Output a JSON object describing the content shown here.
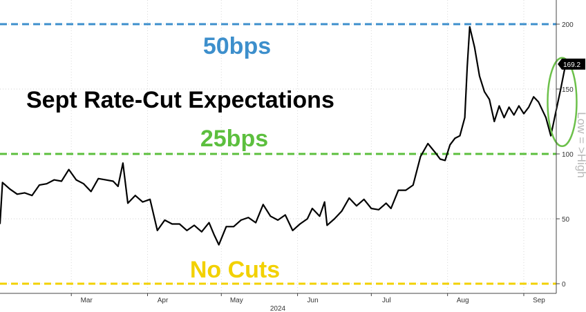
{
  "chart_data": {
    "type": "line",
    "title": "Sept Rate-Cut Expectations",
    "side_label": "Low = >High",
    "year_label": "2024",
    "x_tick_labels": [
      {
        "label": "Mar",
        "x": "2024-03-01"
      },
      {
        "label": "Apr",
        "x": "2024-04-01"
      },
      {
        "label": "May",
        "x": "2024-05-01"
      },
      {
        "label": "Jun",
        "x": "2024-06-01"
      },
      {
        "label": "Jul",
        "x": "2024-07-01"
      },
      {
        "label": "Aug",
        "x": "2024-08-01"
      },
      {
        "label": "Sep",
        "x": "2024-09-01"
      }
    ],
    "y_ticks": [
      0,
      50,
      100,
      150,
      200
    ],
    "ylim": [
      -5,
      210
    ],
    "xlim": [
      "2024-02-01",
      "2024-09-10"
    ],
    "last_value_label": "169.2",
    "reference_lines": [
      {
        "label": "50bps",
        "value": 200,
        "color": "#3d8fcc"
      },
      {
        "label": "25bps",
        "value": 100,
        "color": "#5cbf3e"
      },
      {
        "label": "No Cuts",
        "value": 0,
        "color": "#f2d100"
      }
    ],
    "line_color": "#000000",
    "highlight_color": "#6cc04a",
    "series": [
      {
        "points": [
          [
            "2024-02-01",
            46
          ],
          [
            "2024-02-02",
            78
          ],
          [
            "2024-02-05",
            73
          ],
          [
            "2024-02-08",
            69
          ],
          [
            "2024-02-11",
            70
          ],
          [
            "2024-02-14",
            68
          ],
          [
            "2024-02-17",
            76
          ],
          [
            "2024-02-20",
            77
          ],
          [
            "2024-02-23",
            80
          ],
          [
            "2024-02-26",
            79
          ],
          [
            "2024-02-29",
            88
          ],
          [
            "2024-03-03",
            80
          ],
          [
            "2024-03-06",
            77
          ],
          [
            "2024-03-09",
            71
          ],
          [
            "2024-03-12",
            81
          ],
          [
            "2024-03-15",
            80
          ],
          [
            "2024-03-18",
            79
          ],
          [
            "2024-03-20",
            75
          ],
          [
            "2024-03-22",
            93
          ],
          [
            "2024-03-24",
            62
          ],
          [
            "2024-03-27",
            68
          ],
          [
            "2024-03-30",
            63
          ],
          [
            "2024-04-02",
            65
          ],
          [
            "2024-04-05",
            41
          ],
          [
            "2024-04-08",
            49
          ],
          [
            "2024-04-11",
            46
          ],
          [
            "2024-04-14",
            46
          ],
          [
            "2024-04-17",
            41
          ],
          [
            "2024-04-20",
            45
          ],
          [
            "2024-04-23",
            40
          ],
          [
            "2024-04-26",
            47
          ],
          [
            "2024-04-28",
            38
          ],
          [
            "2024-04-30",
            30
          ],
          [
            "2024-05-03",
            44
          ],
          [
            "2024-05-06",
            44
          ],
          [
            "2024-05-09",
            49
          ],
          [
            "2024-05-12",
            51
          ],
          [
            "2024-05-15",
            47
          ],
          [
            "2024-05-18",
            61
          ],
          [
            "2024-05-21",
            52
          ],
          [
            "2024-05-24",
            49
          ],
          [
            "2024-05-27",
            53
          ],
          [
            "2024-05-30",
            41
          ],
          [
            "2024-06-02",
            46
          ],
          [
            "2024-06-05",
            50
          ],
          [
            "2024-06-07",
            58
          ],
          [
            "2024-06-10",
            52
          ],
          [
            "2024-06-12",
            63
          ],
          [
            "2024-06-13",
            45
          ],
          [
            "2024-06-16",
            50
          ],
          [
            "2024-06-19",
            56
          ],
          [
            "2024-06-22",
            66
          ],
          [
            "2024-06-25",
            60
          ],
          [
            "2024-06-28",
            65
          ],
          [
            "2024-07-01",
            58
          ],
          [
            "2024-07-04",
            57
          ],
          [
            "2024-07-07",
            62
          ],
          [
            "2024-07-09",
            58
          ],
          [
            "2024-07-12",
            72
          ],
          [
            "2024-07-15",
            72
          ],
          [
            "2024-07-18",
            76
          ],
          [
            "2024-07-21",
            98
          ],
          [
            "2024-07-24",
            108
          ],
          [
            "2024-07-27",
            101
          ],
          [
            "2024-07-29",
            96
          ],
          [
            "2024-07-31",
            95
          ],
          [
            "2024-08-02",
            107
          ],
          [
            "2024-08-04",
            112
          ],
          [
            "2024-08-06",
            114
          ],
          [
            "2024-08-08",
            128
          ],
          [
            "2024-08-09",
            167
          ],
          [
            "2024-08-10",
            198
          ],
          [
            "2024-08-12",
            182
          ],
          [
            "2024-08-14",
            160
          ],
          [
            "2024-08-16",
            148
          ],
          [
            "2024-08-18",
            142
          ],
          [
            "2024-08-20",
            125
          ],
          [
            "2024-08-22",
            137
          ],
          [
            "2024-08-24",
            128
          ],
          [
            "2024-08-26",
            136
          ],
          [
            "2024-08-28",
            130
          ],
          [
            "2024-08-30",
            137
          ],
          [
            "2024-09-01",
            131
          ],
          [
            "2024-09-03",
            136
          ],
          [
            "2024-09-05",
            144
          ],
          [
            "2024-09-07",
            140
          ],
          [
            "2024-09-09",
            132
          ],
          [
            "2024-09-10",
            128
          ],
          [
            "2024-09-12",
            114
          ],
          [
            "2024-09-14",
            132
          ],
          [
            "2024-09-16",
            150
          ],
          [
            "2024-09-18",
            169.2
          ]
        ]
      }
    ]
  }
}
